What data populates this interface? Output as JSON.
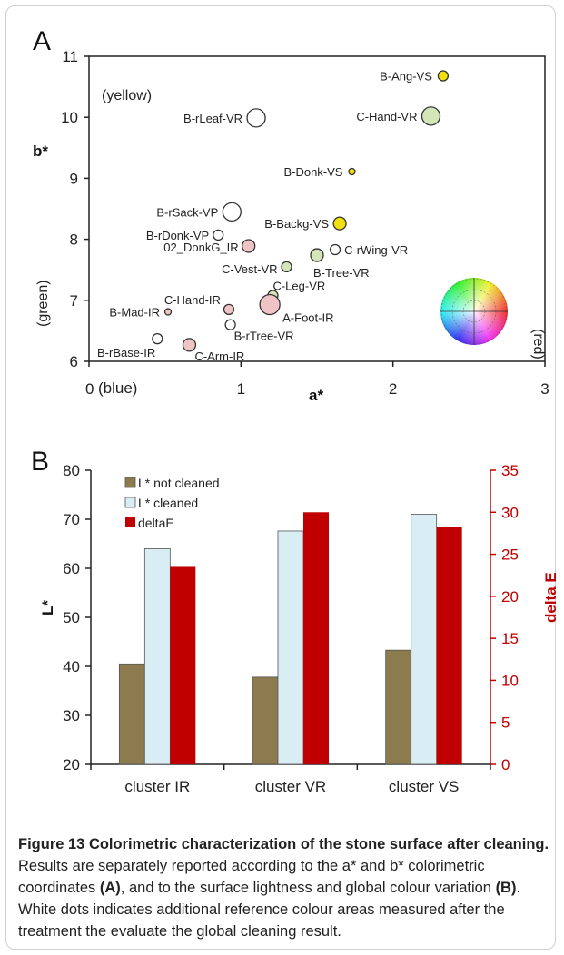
{
  "chart_data": [
    {
      "type": "scatter",
      "panel_label": "A",
      "xlabel": "a*",
      "ylabel": "b*",
      "xlim": [
        0,
        3
      ],
      "ylim": [
        6,
        11
      ],
      "xticks": [
        "0",
        "1",
        "2",
        "3"
      ],
      "yticks": [
        "6",
        "7",
        "8",
        "9",
        "10",
        "11"
      ],
      "annotations": {
        "yellow": "(yellow)",
        "blue": "(blue)",
        "green": "(green)",
        "red": "(red)"
      },
      "points": [
        {
          "label": "B-Ang-VS",
          "x": 2.33,
          "y": 10.68,
          "color": "#f0e010",
          "size": "small"
        },
        {
          "label": "B-rLeaf-VR",
          "x": 1.1,
          "y": 9.99,
          "color": "#ffffff",
          "size": "large"
        },
        {
          "label": "C-Hand-VR",
          "x": 2.25,
          "y": 10.02,
          "color": "#d4e6b8",
          "size": "large"
        },
        {
          "label": "B-Donk-VS",
          "x": 1.73,
          "y": 9.11,
          "color": "#f0e010",
          "size": "tiny"
        },
        {
          "label": "B-rSack-VP",
          "x": 0.94,
          "y": 8.45,
          "color": "#ffffff",
          "size": "large"
        },
        {
          "label": "B-rDonk-VP",
          "x": 0.85,
          "y": 8.07,
          "color": "#ffffff",
          "size": "small"
        },
        {
          "label": "B-Backg-VS",
          "x": 1.65,
          "y": 8.26,
          "color": "#f0e010",
          "size": "medium"
        },
        {
          "label": "02_DonkG_IR",
          "x": 1.05,
          "y": 7.89,
          "color": "#f0c4c4",
          "size": "medium"
        },
        {
          "label": "C-rWing-VR",
          "x": 1.62,
          "y": 7.83,
          "color": "#ffffff",
          "size": "small"
        },
        {
          "label": "B-Tree-VR",
          "x": 1.5,
          "y": 7.74,
          "color": "#d4e6b8",
          "size": "medium"
        },
        {
          "label": "C-Vest-VR",
          "x": 1.3,
          "y": 7.55,
          "color": "#d4e6b8",
          "size": "small"
        },
        {
          "label": "C-Leg-VR",
          "x": 1.21,
          "y": 7.08,
          "color": "#d4e6b8",
          "size": "small"
        },
        {
          "label": "A-Foot-IR",
          "x": 1.19,
          "y": 6.93,
          "color": "#f0c4c4",
          "size": "xlarge"
        },
        {
          "label": "C-Hand-IR",
          "x": 0.92,
          "y": 6.85,
          "color": "#f0c4c4",
          "size": "small"
        },
        {
          "label": "B-Mad-IR",
          "x": 0.52,
          "y": 6.81,
          "color": "#f0c4c4",
          "size": "tiny"
        },
        {
          "label": "B-rTree-VR",
          "x": 0.93,
          "y": 6.6,
          "color": "#ffffff",
          "size": "small"
        },
        {
          "label": "B-rBase-IR",
          "x": 0.45,
          "y": 6.37,
          "color": "#ffffff",
          "size": "small"
        },
        {
          "label": "C-Arm-IR",
          "x": 0.66,
          "y": 6.27,
          "color": "#f0c4c4",
          "size": "medium"
        }
      ]
    },
    {
      "type": "bar",
      "panel_label": "B",
      "categories": [
        "cluster IR",
        "cluster VR",
        "cluster VS"
      ],
      "ylabel": "L*",
      "y2label": "delta E",
      "ylim": [
        20,
        80
      ],
      "y2lim": [
        0,
        35
      ],
      "yticks": [
        "20",
        "30",
        "40",
        "50",
        "60",
        "70",
        "80"
      ],
      "y2ticks": [
        "0",
        "5",
        "10",
        "15",
        "20",
        "25",
        "30",
        "35"
      ],
      "series": [
        {
          "name": "L* not cleaned",
          "axis": "left",
          "color": "#8b7b4e",
          "values": [
            40.5,
            37.8,
            43.3
          ]
        },
        {
          "name": "L* cleaned",
          "axis": "left",
          "color": "#d9edf4",
          "values": [
            64.0,
            67.6,
            71.0
          ]
        },
        {
          "name": "deltaE",
          "axis": "right",
          "color": "#c00000",
          "values": [
            23.5,
            30.0,
            28.2
          ]
        }
      ],
      "legend_position": "top-left"
    }
  ],
  "caption": {
    "title": "Figure 13 Colorimetric characterization of the stone surface after cleaning.",
    "text1": " Results are separately reported according to the a* and b* colorimetric coordinates ",
    "bold_a": "(A)",
    "text2": ", and to the surface lightness and global colour variation ",
    "bold_b": "(B)",
    "text3": ". White dots indicates additional reference colour areas measured after the treatment the evaluate the global cleaning result."
  }
}
